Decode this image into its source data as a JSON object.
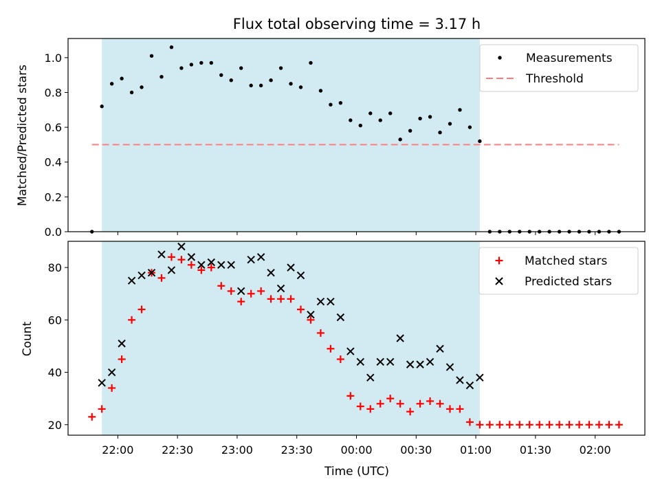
{
  "figure_title": "Flux total observing time = 3.17 h",
  "colors": {
    "observing_window": "#add8e6",
    "measurements": "#000000",
    "threshold": "#ff7f7f",
    "matched": "#ff0000",
    "predicted": "#000000"
  },
  "chart_data": [
    {
      "type": "scatter",
      "title": "Flux total observing time = 3.17 h",
      "xlabel": "",
      "ylabel": "Matched/Predicted stars",
      "ylim": [
        0,
        1.11
      ],
      "xlim": [
        "21:35",
        "02:25"
      ],
      "yticks": [
        "0.0",
        "0.2",
        "0.4",
        "0.6",
        "0.8",
        "1.0"
      ],
      "legend": {
        "position": "upper right",
        "entries": [
          "Measurements",
          "Threshold"
        ]
      },
      "observing_window": [
        "21:52",
        "01:02"
      ],
      "series": [
        {
          "name": "Measurements",
          "marker": "dot",
          "x": [
            "21:47",
            "21:52",
            "21:57",
            "22:02",
            "22:07",
            "22:12",
            "22:17",
            "22:22",
            "22:27",
            "22:32",
            "22:37",
            "22:42",
            "22:47",
            "22:52",
            "22:57",
            "23:02",
            "23:07",
            "23:12",
            "23:17",
            "23:22",
            "23:27",
            "23:32",
            "23:37",
            "23:42",
            "23:47",
            "23:52",
            "23:57",
            "00:02",
            "00:07",
            "00:12",
            "00:17",
            "00:22",
            "00:27",
            "00:32",
            "00:37",
            "00:42",
            "00:47",
            "00:52",
            "00:57",
            "01:02",
            "01:07",
            "01:12",
            "01:17",
            "01:22",
            "01:27",
            "01:32",
            "01:37",
            "01:42",
            "01:47",
            "01:52",
            "01:57",
            "02:02",
            "02:07",
            "02:12"
          ],
          "y": [
            0.0,
            0.72,
            0.85,
            0.88,
            0.8,
            0.83,
            1.01,
            0.89,
            1.06,
            0.94,
            0.96,
            0.97,
            0.97,
            0.9,
            0.87,
            0.94,
            0.84,
            0.84,
            0.87,
            0.94,
            0.85,
            0.83,
            0.97,
            0.81,
            0.73,
            0.74,
            0.64,
            0.61,
            0.68,
            0.64,
            0.68,
            0.53,
            0.58,
            0.65,
            0.66,
            0.57,
            0.62,
            0.7,
            0.6,
            0.52,
            0.0,
            0.0,
            0.0,
            0.0,
            0.0,
            0.0,
            0.0,
            0.0,
            0.0,
            0.0,
            0.0,
            0.0,
            0.0,
            0.0
          ]
        },
        {
          "name": "Threshold",
          "style": "dashed",
          "x": [
            "21:47",
            "02:12"
          ],
          "y": [
            0.5,
            0.5
          ]
        }
      ]
    },
    {
      "type": "scatter",
      "title": "",
      "xlabel": "Time (UTC)",
      "ylabel": "Count",
      "ylim": [
        16,
        90
      ],
      "xlim": [
        "21:35",
        "02:25"
      ],
      "yticks": [
        "20",
        "40",
        "60",
        "80"
      ],
      "xticks": [
        "22:00",
        "22:30",
        "23:00",
        "23:30",
        "00:00",
        "00:30",
        "01:00",
        "01:30",
        "02:00"
      ],
      "legend": {
        "position": "upper right",
        "entries": [
          "Matched stars",
          "Predicted stars"
        ]
      },
      "observing_window": [
        "21:52",
        "01:02"
      ],
      "series": [
        {
          "name": "Matched stars",
          "marker": "plus",
          "x": [
            "21:47",
            "21:52",
            "21:57",
            "22:02",
            "22:07",
            "22:12",
            "22:17",
            "22:22",
            "22:27",
            "22:32",
            "22:37",
            "22:42",
            "22:47",
            "22:52",
            "22:57",
            "23:02",
            "23:07",
            "23:12",
            "23:17",
            "23:22",
            "23:27",
            "23:32",
            "23:37",
            "23:42",
            "23:47",
            "23:52",
            "23:57",
            "00:02",
            "00:07",
            "00:12",
            "00:17",
            "00:22",
            "00:27",
            "00:32",
            "00:37",
            "00:42",
            "00:47",
            "00:52",
            "00:57",
            "01:02",
            "01:07",
            "01:12",
            "01:17",
            "01:22",
            "01:27",
            "01:32",
            "01:37",
            "01:42",
            "01:47",
            "01:52",
            "01:57",
            "02:02",
            "02:07",
            "02:12"
          ],
          "y": [
            23,
            26,
            34,
            45,
            60,
            64,
            78,
            76,
            84,
            83,
            81,
            79,
            80,
            73,
            71,
            67,
            70,
            71,
            68,
            68,
            68,
            64,
            60,
            55,
            49,
            45,
            31,
            27,
            26,
            28,
            30,
            28,
            25,
            28,
            29,
            28,
            26,
            26,
            21,
            20,
            20,
            20,
            20,
            20,
            20,
            20,
            20,
            20,
            20,
            20,
            20,
            20,
            20,
            20
          ]
        },
        {
          "name": "Predicted stars",
          "marker": "x",
          "x": [
            "21:52",
            "21:57",
            "22:02",
            "22:07",
            "22:12",
            "22:17",
            "22:22",
            "22:27",
            "22:32",
            "22:37",
            "22:42",
            "22:47",
            "22:52",
            "22:57",
            "23:02",
            "23:07",
            "23:12",
            "23:17",
            "23:22",
            "23:27",
            "23:32",
            "23:37",
            "23:42",
            "23:47",
            "23:52",
            "23:57",
            "00:02",
            "00:07",
            "00:12",
            "00:17",
            "00:22",
            "00:27",
            "00:32",
            "00:37",
            "00:42",
            "00:47",
            "00:52",
            "00:57",
            "01:02"
          ],
          "y": [
            36,
            40,
            51,
            75,
            77,
            78,
            85,
            79,
            88,
            84,
            81,
            82,
            81,
            81,
            71,
            83,
            84,
            78,
            72,
            80,
            77,
            62,
            67,
            67,
            61,
            48,
            44,
            38,
            44,
            44,
            53,
            43,
            43,
            44,
            49,
            42,
            37,
            35,
            38
          ]
        }
      ]
    }
  ]
}
